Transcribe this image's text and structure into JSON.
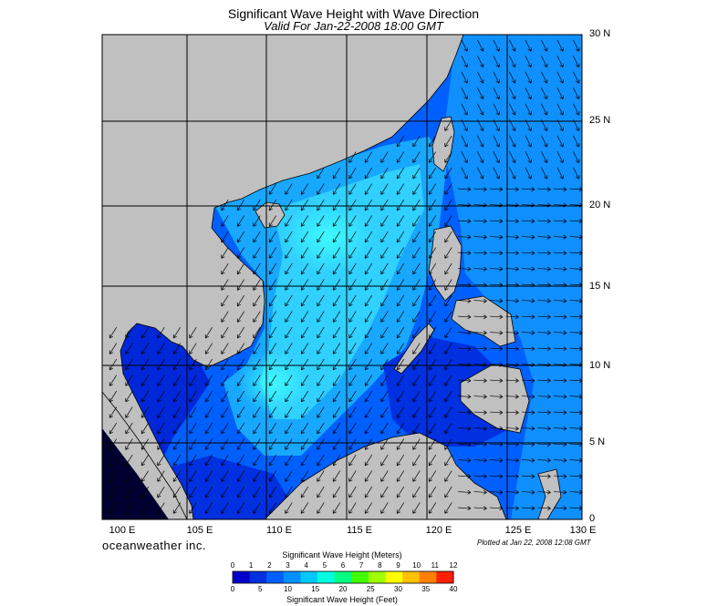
{
  "title": "Significant Wave Height with Wave Direction",
  "subtitle": "Valid For Jan-22-2008 18:00 GMT",
  "lat_labels": [
    "30 N",
    "25 N",
    "20 N",
    "15 N",
    "10 N",
    "5 N",
    "0"
  ],
  "lon_labels": [
    "100 E",
    "105 E",
    "110 E",
    "115 E",
    "120 E",
    "125 E",
    "130 E"
  ],
  "brand": "oceanweather inc.",
  "plotted": "Plotted at Jan 22, 2008 12:08 GMT",
  "colorbar": {
    "meters_title": "Significant Wave Height (Meters)",
    "meters_ticks": [
      "0",
      "1",
      "2",
      "3",
      "4",
      "5",
      "6",
      "7",
      "8",
      "9",
      "10",
      "11",
      "12"
    ],
    "feet_title": "Significant Wave Height (Feet)",
    "feet_ticks": [
      "0",
      "5",
      "10",
      "15",
      "20",
      "25",
      "30",
      "35",
      "40"
    ],
    "colors": [
      "#0000c8",
      "#0030e0",
      "#0060ff",
      "#0090ff",
      "#00c8ff",
      "#00ffe0",
      "#00ff80",
      "#40ff00",
      "#a0ff00",
      "#ffff00",
      "#ffc000",
      "#ff8000",
      "#ff2000"
    ]
  },
  "map_colors": {
    "land": "#c0c0c0",
    "sea_low": "#0050ff",
    "sea_mid": "#0090ff",
    "sea_high": "#20e0ff",
    "deep_low": "#0018c0"
  }
}
